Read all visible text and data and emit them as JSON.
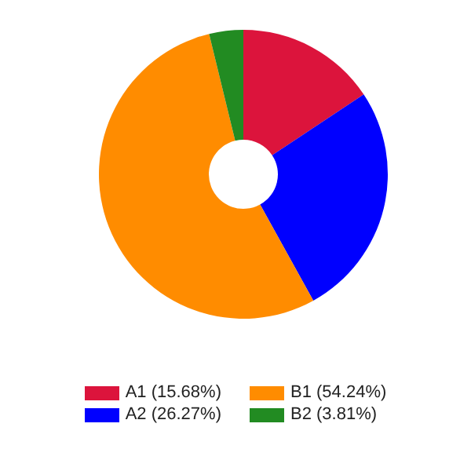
{
  "chart_data": {
    "type": "donut",
    "categories": [
      "A1 (15.68%)",
      "A2 (26.27%)",
      "B1 (54.24%)",
      "B2 (3.81%)"
    ],
    "values": [
      15.68,
      26.27,
      54.24,
      3.81
    ],
    "colors": [
      "#dc143c",
      "#0000ff",
      "#ff8c00",
      "#228b22"
    ],
    "legend": "bottom"
  }
}
